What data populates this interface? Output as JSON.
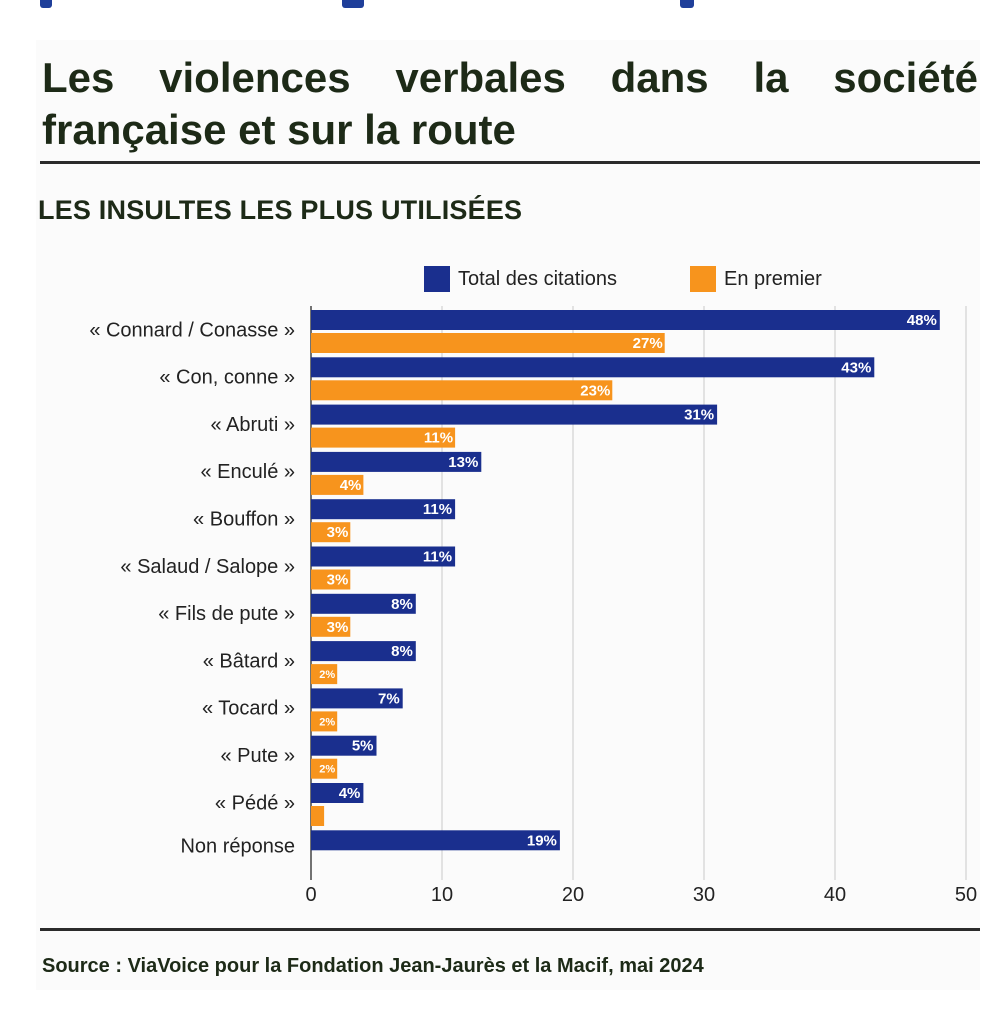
{
  "header": {
    "title": "Les violences verbales dans la société française et sur la route",
    "subtitle": "LES INSULTES LES PLUS UTILISÉES",
    "source": "Source : ViaVoice pour la Fondation Jean-Jaurès et la Macif, mai 2024"
  },
  "colors": {
    "total": "#1a2f8e",
    "premier": "#f7941d",
    "grid": "#d9d9d9",
    "label_text": "#ffffff"
  },
  "chart_data": {
    "type": "bar",
    "orientation": "horizontal",
    "title": "LES INSULTES LES PLUS UTILISÉES",
    "categories": [
      "« Connard / Conasse »",
      "« Con, conne »",
      "« Abruti »",
      "« Enculé »",
      "« Bouffon »",
      "« Salaud / Salope »",
      "« Fils de pute »",
      "« Bâtard »",
      "« Tocard »",
      "« Pute »",
      "« Pédé »",
      "Non réponse"
    ],
    "series": [
      {
        "name": "Total des citations",
        "values": [
          48,
          43,
          31,
          13,
          11,
          11,
          8,
          8,
          7,
          5,
          4,
          19
        ],
        "labels": [
          "48%",
          "43%",
          "31%",
          "13%",
          "11%",
          "11%",
          "8%",
          "8%",
          "7%",
          "5%",
          "4%",
          "19%"
        ]
      },
      {
        "name": "En premier",
        "values": [
          27,
          23,
          11,
          4,
          3,
          3,
          3,
          2,
          2,
          2,
          1,
          null
        ],
        "labels": [
          "27%",
          "23%",
          "11%",
          "4%",
          "3%",
          "3%",
          "3%",
          "2%",
          "2%",
          "2%",
          "",
          ""
        ]
      }
    ],
    "xlim": [
      0,
      50
    ],
    "xticks": [
      0,
      10,
      20,
      30,
      40,
      50
    ],
    "xtick_labels": [
      "0",
      "10",
      "20",
      "30",
      "40",
      "50"
    ],
    "legend_position": "top",
    "grid": true
  }
}
